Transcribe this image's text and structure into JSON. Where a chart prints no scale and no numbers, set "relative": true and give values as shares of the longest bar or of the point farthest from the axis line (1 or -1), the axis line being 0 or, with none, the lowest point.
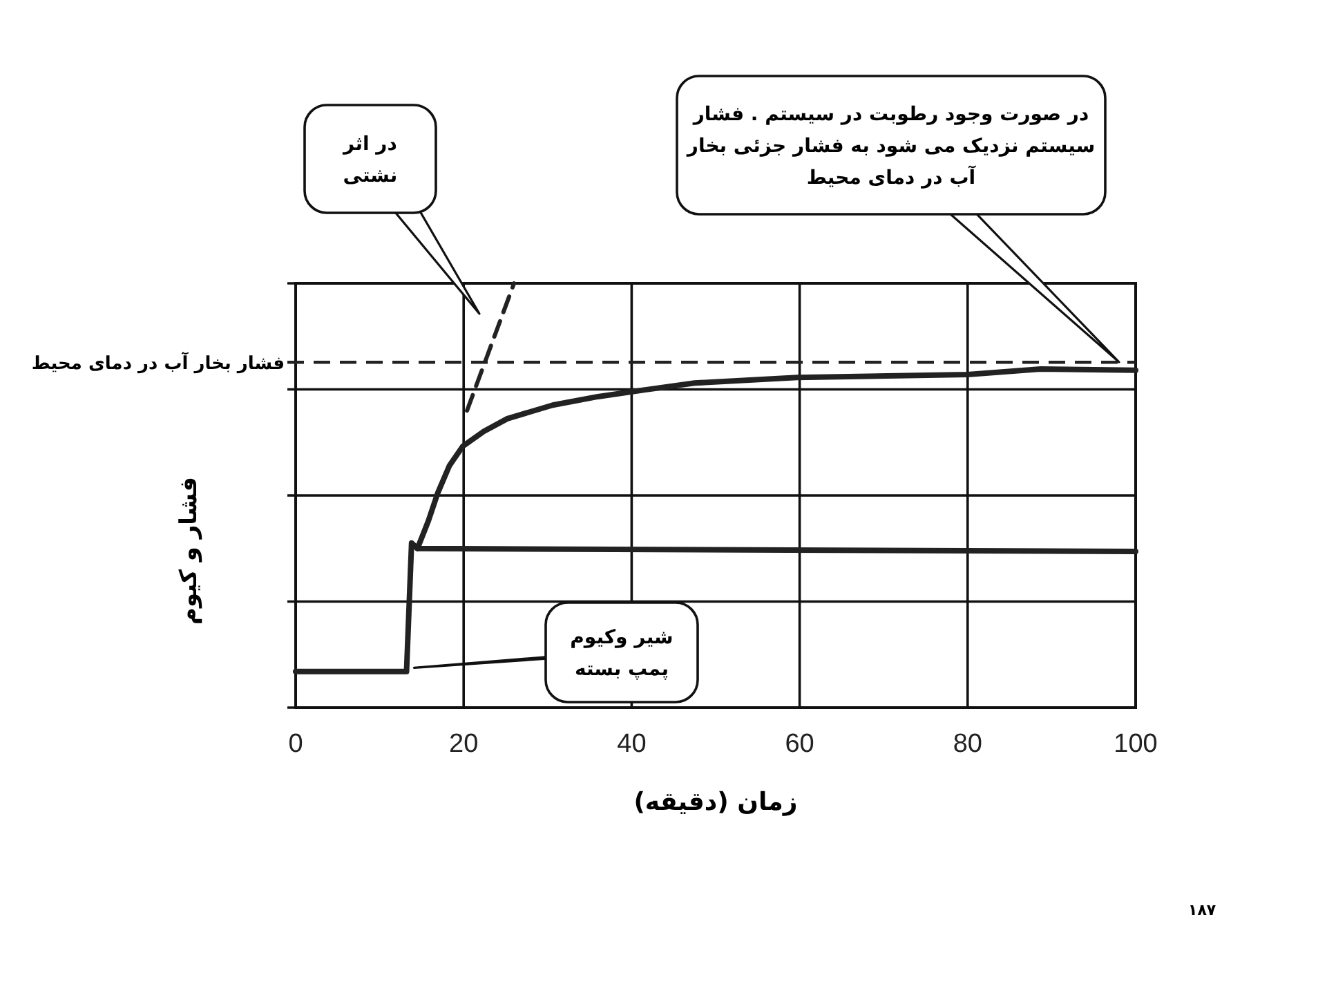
{
  "chart_data": {
    "type": "line",
    "xlabel": "زمان (دقیقه)",
    "ylabel": "فشار و کیوم",
    "relative": true,
    "xlim": [
      0,
      100
    ],
    "xticks": [
      0,
      20,
      40,
      60,
      80,
      100
    ],
    "grid": true,
    "marker": "none",
    "series": [
      {
        "color": "#222222",
        "line_style": "solid",
        "x": [
          0,
          13.2,
          13.8,
          14.5,
          100
        ],
        "values": [
          0.085,
          0.085,
          0.388,
          0.375,
          0.368
        ]
      },
      {
        "color": "#222222",
        "line_style": "solid",
        "x": [
          14.5,
          15.8,
          16.9,
          18.3,
          19.9,
          22.4,
          25.2,
          30.6,
          36,
          41.6,
          47.5,
          59.7,
          80,
          88.7,
          100
        ],
        "values": [
          0.375,
          0.44,
          0.505,
          0.57,
          0.616,
          0.651,
          0.681,
          0.713,
          0.733,
          0.749,
          0.765,
          0.778,
          0.785,
          0.798,
          0.795
        ]
      },
      {
        "color": "#222222",
        "line_style": "dashed",
        "x": [
          20.4,
          26
        ],
        "values": [
          0.7,
          1.0
        ]
      }
    ],
    "ref_lines": [
      {
        "axis": "y",
        "value": 0.814,
        "label": "فشار بخار آب در دمای محیط",
        "line_style": "dashed",
        "color": "#222222"
      }
    ],
    "annotations": [
      "در اثر نشتی",
      "در صورت وجود رطوبت در سیستم . فشار سیستم نزدیک می شود به فشار جزئی بخار آب در دمای محیط",
      {
        "text": "شیر وکیوم پمپ بسته",
        "x": 14.1,
        "y": 0.094
      },
      "۱۸۷"
    ]
  }
}
